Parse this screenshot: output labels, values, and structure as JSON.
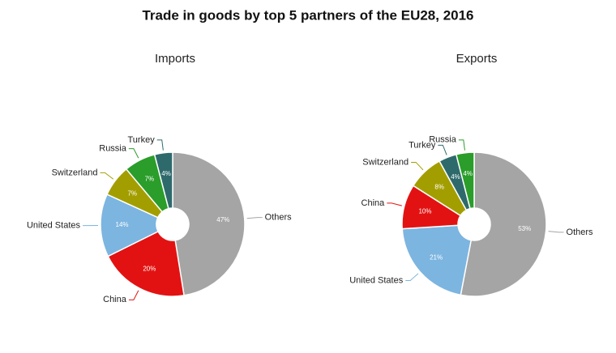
{
  "title": "Trade in goods by top 5 partners of the EU28, 2016",
  "chart_data": [
    {
      "type": "pie",
      "title": "Imports",
      "categories": [
        "Others",
        "China",
        "United States",
        "Switzerland",
        "Russia",
        "Turkey"
      ],
      "values": [
        47,
        20,
        14,
        7,
        7,
        4
      ],
      "value_labels": [
        "47%",
        "20%",
        "14%",
        "7%",
        "7%",
        "4%"
      ],
      "colors": [
        "#a5a5a5",
        "#e31212",
        "#7cb5e0",
        "#a39e00",
        "#2a9d2a",
        "#2e6a6c"
      ]
    },
    {
      "type": "pie",
      "title": "Exports",
      "categories": [
        "Others",
        "United States",
        "China",
        "Switzerland",
        "Turkey",
        "Russia"
      ],
      "values": [
        53,
        21,
        10,
        8,
        4,
        4
      ],
      "value_labels": [
        "53%",
        "21%",
        "10%",
        "8%",
        "4%",
        "4%"
      ],
      "colors": [
        "#a5a5a5",
        "#7cb5e0",
        "#e31212",
        "#a39e00",
        "#2e6a6c",
        "#2a9d2a"
      ]
    }
  ]
}
